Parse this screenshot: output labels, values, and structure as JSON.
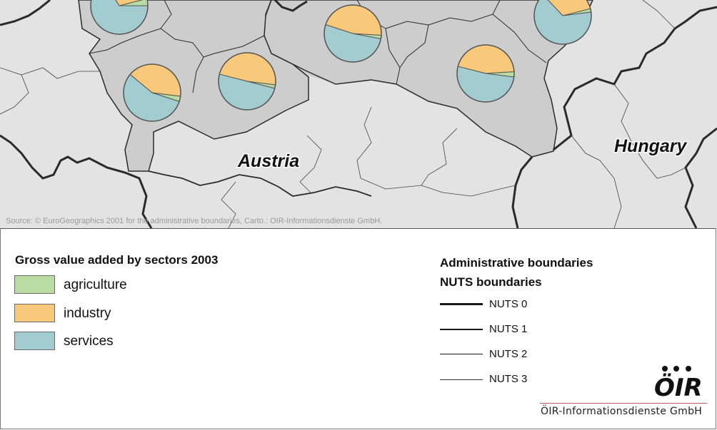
{
  "map": {
    "country_labels": [
      "Austria",
      "Hungary"
    ],
    "source_text": "Source: © EuroGeographics 2001 for the administrative boundaries, Carto.: OIR-Informationsdienste GmbH.",
    "colors": {
      "background_region": "#e3e3e3",
      "highlight_region": "#cdcdcd",
      "agriculture": "#b9dca2",
      "industry": "#f8c97a",
      "services": "#a2ccd0",
      "boundary": "#2a2a2a"
    },
    "pie_shares": [
      {
        "agriculture": 0.04,
        "industry": 0.3,
        "services": 0.66
      },
      {
        "agriculture": 0.02,
        "industry": 0.48,
        "services": 0.5
      },
      {
        "agriculture": 0.02,
        "industry": 0.46,
        "services": 0.52
      },
      {
        "agriculture": 0.03,
        "industry": 0.41,
        "services": 0.56
      },
      {
        "agriculture": 0.03,
        "industry": 0.45,
        "services": 0.52
      },
      {
        "agriculture": 0.02,
        "industry": 0.33,
        "services": 0.65
      }
    ]
  },
  "legend": {
    "sectors_title": "Gross value added by sectors 2003",
    "sectors": [
      {
        "label": "agriculture",
        "color": "#b9dca2"
      },
      {
        "label": "industry",
        "color": "#f8c97a"
      },
      {
        "label": "services",
        "color": "#a2ccd0"
      }
    ],
    "boundaries_title_1": "Administrative boundaries",
    "boundaries_title_2": "NUTS boundaries",
    "boundary_levels": [
      "NUTS 0",
      "NUTS 1",
      "NUTS 2",
      "NUTS 3"
    ]
  },
  "logo": {
    "mark_text": "ÖIR",
    "company": "ÖIR-Informationsdienste GmbH"
  }
}
